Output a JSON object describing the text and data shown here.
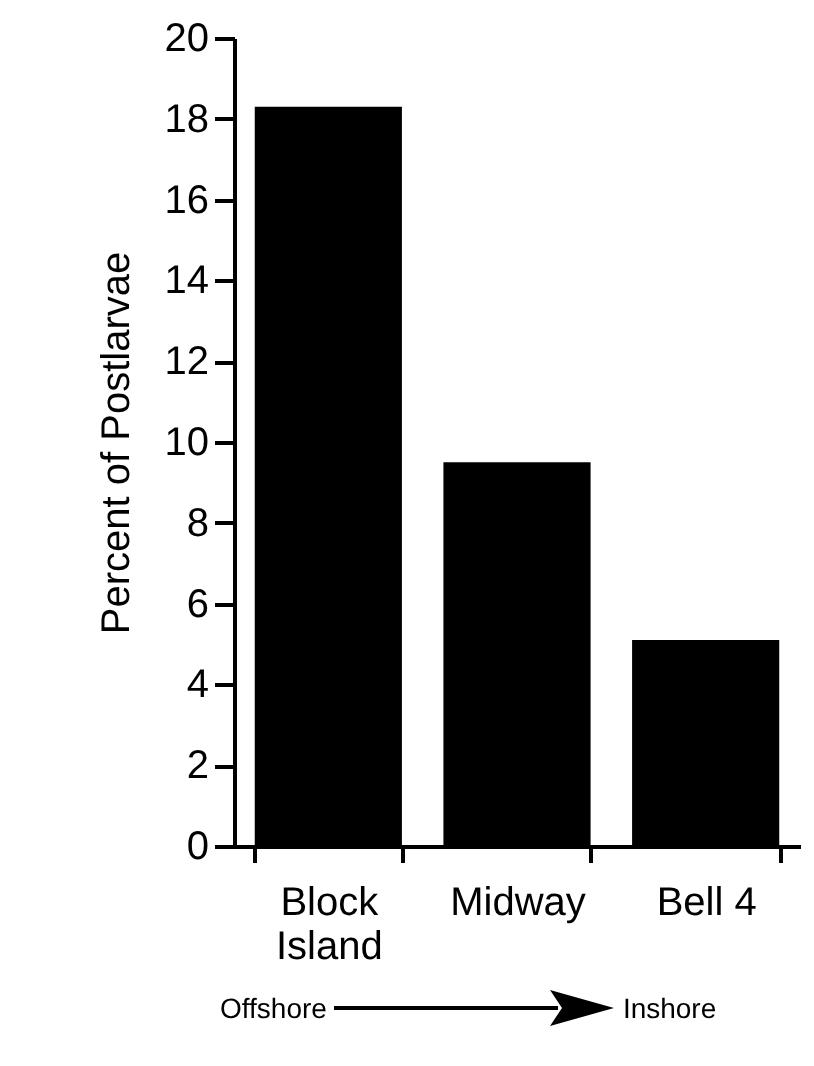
{
  "chart_data": {
    "type": "bar",
    "categories": [
      "Block\nIsland",
      "Midway",
      "Bell 4"
    ],
    "values": [
      18.3,
      9.5,
      5.1
    ],
    "color": "#000000",
    "ylabel": "Percent of Postlarvae",
    "ylim": [
      0,
      20
    ],
    "yticks": [
      0,
      2,
      4,
      6,
      8,
      10,
      12,
      14,
      16,
      18,
      20
    ],
    "grid": false,
    "annotations": [
      "Offshore",
      "Inshore"
    ]
  }
}
